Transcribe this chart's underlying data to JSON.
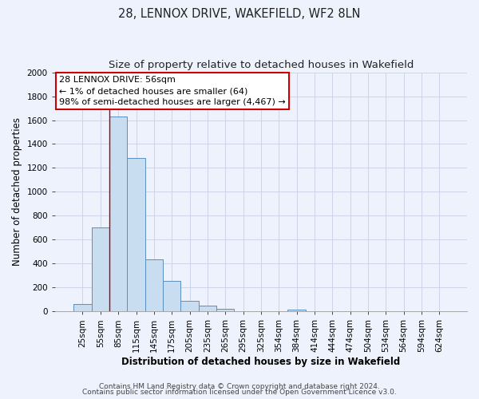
{
  "title": "28, LENNOX DRIVE, WAKEFIELD, WF2 8LN",
  "subtitle": "Size of property relative to detached houses in Wakefield",
  "xlabel": "Distribution of detached houses by size in Wakefield",
  "ylabel": "Number of detached properties",
  "bar_labels": [
    "25sqm",
    "55sqm",
    "85sqm",
    "115sqm",
    "145sqm",
    "175sqm",
    "205sqm",
    "235sqm",
    "265sqm",
    "295sqm",
    "325sqm",
    "354sqm",
    "384sqm",
    "414sqm",
    "444sqm",
    "474sqm",
    "504sqm",
    "534sqm",
    "564sqm",
    "594sqm",
    "624sqm"
  ],
  "bar_values": [
    65,
    700,
    1630,
    1280,
    435,
    255,
    90,
    50,
    25,
    0,
    0,
    0,
    15,
    0,
    0,
    0,
    0,
    0,
    0,
    0,
    0
  ],
  "bar_color": "#c8ddf0",
  "bar_edge_color": "#5a8fc0",
  "vline_x": 1.5,
  "vline_color": "#aa0000",
  "ylim": [
    0,
    2000
  ],
  "yticks": [
    0,
    200,
    400,
    600,
    800,
    1000,
    1200,
    1400,
    1600,
    1800,
    2000
  ],
  "annotation_box_text": "28 LENNOX DRIVE: 56sqm\n← 1% of detached houses are smaller (64)\n98% of semi-detached houses are larger (4,467) →",
  "footer_line1": "Contains HM Land Registry data © Crown copyright and database right 2024.",
  "footer_line2": "Contains public sector information licensed under the Open Government Licence v3.0.",
  "background_color": "#eef2fc",
  "plot_background_color": "#eef2fc",
  "grid_color": "#c8d0e8",
  "title_fontsize": 10.5,
  "subtitle_fontsize": 9.5,
  "axis_label_fontsize": 8.5,
  "tick_fontsize": 7.5,
  "annotation_fontsize": 8,
  "footer_fontsize": 6.5
}
